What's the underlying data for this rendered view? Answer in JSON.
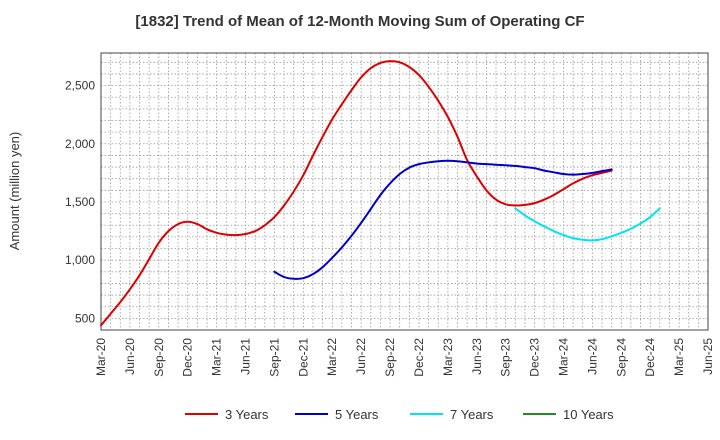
{
  "chart_data": {
    "type": "line",
    "title": "[1832]  Trend of Mean of 12-Month Moving Sum of Operating CF",
    "xlabel": "",
    "ylabel": "Amount (million yen)",
    "ylim": [
      400,
      2780
    ],
    "yticks": [
      500,
      1000,
      1500,
      2000,
      2500
    ],
    "ytick_labels": [
      "500",
      "1,000",
      "1,500",
      "2,000",
      "2,500"
    ],
    "x_range": [
      0,
      63
    ],
    "xticks": [
      0,
      3,
      6,
      9,
      12,
      15,
      18,
      21,
      24,
      27,
      30,
      33,
      36,
      39,
      42,
      45,
      48,
      51,
      54,
      57,
      60,
      63
    ],
    "xtick_labels": [
      "Mar-20",
      "Jun-20",
      "Sep-20",
      "Dec-20",
      "Mar-21",
      "Jun-21",
      "Sep-21",
      "Dec-21",
      "Mar-22",
      "Jun-22",
      "Sep-22",
      "Dec-22",
      "Mar-23",
      "Jun-23",
      "Sep-23",
      "Dec-23",
      "Mar-24",
      "Jun-24",
      "Sep-24",
      "Dec-24",
      "Mar-25",
      "Jun-25"
    ],
    "grid": true,
    "legend_position": "bottom",
    "series": [
      {
        "name": "3 Years",
        "color": "#dd0000",
        "points": [
          [
            0,
            440
          ],
          [
            1,
            540
          ],
          [
            2,
            640
          ],
          [
            3,
            750
          ],
          [
            4,
            870
          ],
          [
            5,
            1010
          ],
          [
            6,
            1150
          ],
          [
            7,
            1250
          ],
          [
            8,
            1310
          ],
          [
            9,
            1330
          ],
          [
            10,
            1310
          ],
          [
            11,
            1265
          ],
          [
            12,
            1235
          ],
          [
            13,
            1220
          ],
          [
            14,
            1215
          ],
          [
            15,
            1225
          ],
          [
            16,
            1250
          ],
          [
            17,
            1300
          ],
          [
            18,
            1370
          ],
          [
            19,
            1470
          ],
          [
            20,
            1590
          ],
          [
            21,
            1730
          ],
          [
            22,
            1900
          ],
          [
            23,
            2060
          ],
          [
            24,
            2210
          ],
          [
            25,
            2340
          ],
          [
            26,
            2460
          ],
          [
            27,
            2570
          ],
          [
            28,
            2650
          ],
          [
            29,
            2695
          ],
          [
            30,
            2710
          ],
          [
            31,
            2700
          ],
          [
            32,
            2660
          ],
          [
            33,
            2590
          ],
          [
            34,
            2490
          ],
          [
            35,
            2370
          ],
          [
            36,
            2230
          ],
          [
            37,
            2060
          ],
          [
            38,
            1860
          ],
          [
            39,
            1720
          ],
          [
            40,
            1600
          ],
          [
            41,
            1520
          ],
          [
            42,
            1480
          ],
          [
            43,
            1470
          ],
          [
            44,
            1475
          ],
          [
            45,
            1490
          ],
          [
            46,
            1520
          ],
          [
            47,
            1560
          ],
          [
            48,
            1610
          ],
          [
            49,
            1660
          ],
          [
            50,
            1700
          ],
          [
            51,
            1730
          ],
          [
            52,
            1750
          ],
          [
            53,
            1770
          ]
        ]
      },
      {
        "name": "5 Years",
        "color": "#0000cc",
        "points": [
          [
            18,
            900
          ],
          [
            19,
            855
          ],
          [
            20,
            840
          ],
          [
            21,
            845
          ],
          [
            22,
            880
          ],
          [
            23,
            940
          ],
          [
            24,
            1020
          ],
          [
            25,
            1110
          ],
          [
            26,
            1210
          ],
          [
            27,
            1320
          ],
          [
            28,
            1440
          ],
          [
            29,
            1560
          ],
          [
            30,
            1660
          ],
          [
            31,
            1740
          ],
          [
            32,
            1795
          ],
          [
            33,
            1825
          ],
          [
            34,
            1840
          ],
          [
            35,
            1850
          ],
          [
            36,
            1855
          ],
          [
            37,
            1850
          ],
          [
            38,
            1840
          ],
          [
            39,
            1830
          ],
          [
            40,
            1825
          ],
          [
            41,
            1820
          ],
          [
            42,
            1815
          ],
          [
            43,
            1810
          ],
          [
            44,
            1800
          ],
          [
            45,
            1790
          ],
          [
            46,
            1770
          ],
          [
            47,
            1755
          ],
          [
            48,
            1740
          ],
          [
            49,
            1735
          ],
          [
            50,
            1740
          ],
          [
            51,
            1750
          ],
          [
            52,
            1765
          ],
          [
            53,
            1780
          ]
        ]
      },
      {
        "name": "7 Years",
        "color": "#00e5ee",
        "points": [
          [
            43,
            1445
          ],
          [
            44,
            1385
          ],
          [
            45,
            1335
          ],
          [
            46,
            1290
          ],
          [
            47,
            1250
          ],
          [
            48,
            1215
          ],
          [
            49,
            1190
          ],
          [
            50,
            1175
          ],
          [
            51,
            1170
          ],
          [
            52,
            1180
          ],
          [
            53,
            1205
          ],
          [
            54,
            1235
          ],
          [
            55,
            1270
          ],
          [
            56,
            1315
          ],
          [
            57,
            1370
          ],
          [
            58,
            1445
          ]
        ]
      },
      {
        "name": "10 Years",
        "color": "#228b22",
        "points": []
      }
    ]
  }
}
